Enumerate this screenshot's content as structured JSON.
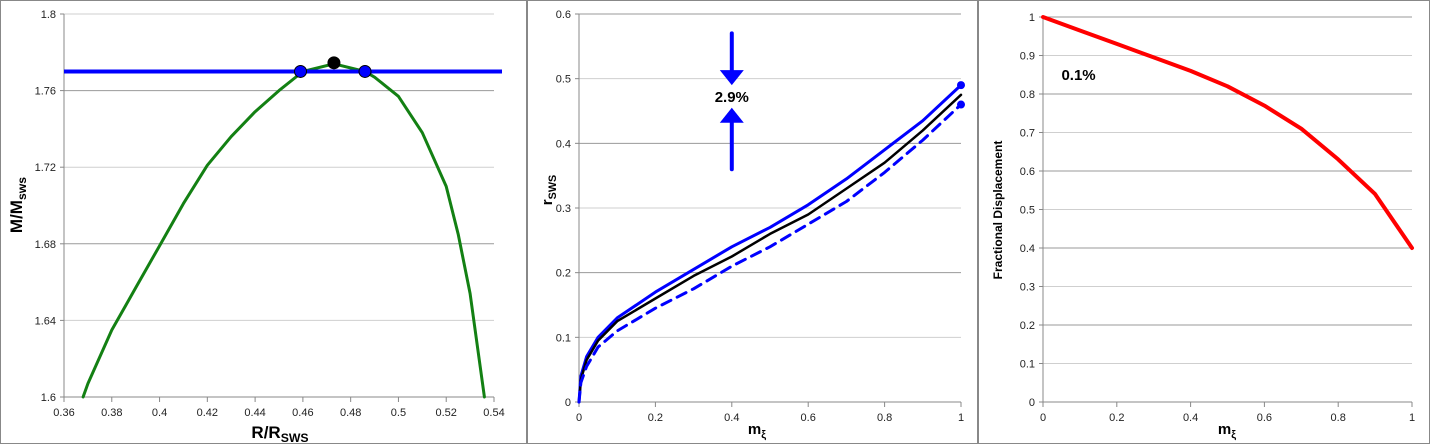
{
  "chart_data": [
    {
      "type": "line",
      "id": "left",
      "xlabel": {
        "main": "R/R",
        "sub": "SWS"
      },
      "ylabel": {
        "main": "M/M",
        "sub": "sws"
      },
      "xlim": [
        0.36,
        0.54
      ],
      "ylim": [
        1.6,
        1.8
      ],
      "xticks": [
        0.36,
        0.38,
        0.4,
        0.42,
        0.44,
        0.46,
        0.48,
        0.5,
        0.52,
        0.54
      ],
      "yticks": [
        1.6,
        1.64,
        1.68,
        1.72,
        1.76,
        1.8
      ],
      "grid": true,
      "series": [
        {
          "name": "mass-radius curve",
          "color": "#138013",
          "style": "solid",
          "x": [
            0.368,
            0.37,
            0.38,
            0.39,
            0.4,
            0.41,
            0.42,
            0.43,
            0.44,
            0.45,
            0.46,
            0.473,
            0.486,
            0.49,
            0.5,
            0.51,
            0.52,
            0.525,
            0.53,
            0.536
          ],
          "y": [
            1.6,
            1.607,
            1.635,
            1.657,
            1.679,
            1.701,
            1.721,
            1.736,
            1.749,
            1.76,
            1.77,
            1.774,
            1.77,
            1.767,
            1.757,
            1.738,
            1.71,
            1.685,
            1.654,
            1.6
          ]
        },
        {
          "name": "horizontal mass level",
          "color": "#0000ff",
          "style": "hline",
          "y": 1.77
        }
      ],
      "points": [
        {
          "x": 0.459,
          "y": 1.77,
          "color": "#0000ff"
        },
        {
          "x": 0.486,
          "y": 1.77,
          "color": "#0000ff"
        },
        {
          "x": 0.473,
          "y": 1.7745,
          "color": "#000000"
        }
      ]
    },
    {
      "type": "line",
      "id": "middle",
      "xlabel": {
        "main": "m",
        "sub": "ξ"
      },
      "ylabel": {
        "main": "r",
        "sub": "SWS"
      },
      "xlim": [
        0,
        1
      ],
      "ylim": [
        0,
        0.6
      ],
      "xticks": [
        0,
        0.2,
        0.4,
        0.6,
        0.8,
        1
      ],
      "yticks": [
        0,
        0.1,
        0.2,
        0.3,
        0.4,
        0.5,
        0.6
      ],
      "grid": true,
      "series": [
        {
          "name": "blue solid",
          "color": "#0000ff",
          "style": "solid",
          "x": [
            0,
            0.005,
            0.02,
            0.05,
            0.1,
            0.2,
            0.3,
            0.4,
            0.5,
            0.6,
            0.7,
            0.8,
            0.9,
            1
          ],
          "y": [
            0,
            0.04,
            0.07,
            0.1,
            0.13,
            0.17,
            0.205,
            0.24,
            0.27,
            0.305,
            0.345,
            0.39,
            0.435,
            0.49
          ]
        },
        {
          "name": "black solid",
          "color": "#000000",
          "style": "solid",
          "x": [
            0,
            0.005,
            0.02,
            0.05,
            0.1,
            0.2,
            0.3,
            0.4,
            0.5,
            0.6,
            0.7,
            0.8,
            0.9,
            1
          ],
          "y": [
            0,
            0.035,
            0.065,
            0.095,
            0.125,
            0.16,
            0.195,
            0.225,
            0.26,
            0.29,
            0.33,
            0.37,
            0.42,
            0.475
          ]
        },
        {
          "name": "blue dashed",
          "color": "#0000ff",
          "style": "dashed",
          "x": [
            0,
            0.005,
            0.02,
            0.05,
            0.1,
            0.2,
            0.3,
            0.4,
            0.5,
            0.6,
            0.7,
            0.8,
            0.9,
            1
          ],
          "y": [
            0,
            0.03,
            0.055,
            0.085,
            0.11,
            0.145,
            0.175,
            0.21,
            0.24,
            0.275,
            0.31,
            0.355,
            0.405,
            0.46
          ]
        }
      ],
      "points": [
        {
          "x": 1,
          "y": 0.49,
          "color": "#0000ff"
        },
        {
          "x": 1,
          "y": 0.46,
          "color": "#0000ff"
        }
      ],
      "arrows": [
        {
          "x": 0.4,
          "from": 0.57,
          "to": 0.49,
          "color": "#0000ff"
        },
        {
          "x": 0.4,
          "from": 0.36,
          "to": 0.455,
          "color": "#0000ff"
        }
      ],
      "annotation": {
        "text": "2.9%",
        "x": 0.4,
        "y": 0.472
      }
    },
    {
      "type": "line",
      "id": "right",
      "xlabel": {
        "main": "m",
        "sub": "ξ"
      },
      "ylabel": {
        "main": "Fractional Displacement",
        "sub": ""
      },
      "xlim": [
        0,
        1
      ],
      "ylim": [
        0,
        1
      ],
      "xticks": [
        0,
        0.2,
        0.4,
        0.6,
        0.8,
        1
      ],
      "yticks": [
        0,
        0.1,
        0.2,
        0.3,
        0.4,
        0.5,
        0.6,
        0.7,
        0.8,
        0.9,
        1
      ],
      "grid": true,
      "series": [
        {
          "name": "red curve",
          "color": "#ff0000",
          "style": "thick",
          "x": [
            0,
            0.1,
            0.2,
            0.3,
            0.4,
            0.5,
            0.6,
            0.7,
            0.8,
            0.9,
            1
          ],
          "y": [
            1,
            0.965,
            0.93,
            0.895,
            0.86,
            0.82,
            0.77,
            0.71,
            0.63,
            0.54,
            0.4
          ]
        }
      ],
      "points": [],
      "annotation": {
        "text": "0.1%",
        "x": 0.05,
        "y": 0.85
      }
    }
  ]
}
